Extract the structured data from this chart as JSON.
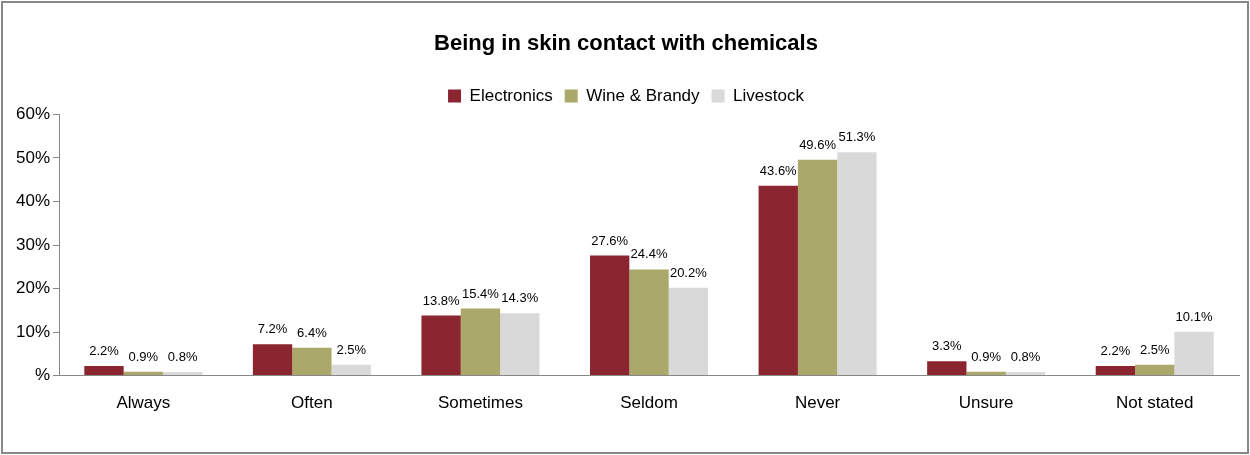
{
  "chart_data": {
    "type": "bar",
    "title": "Being in skin contact with chemicals",
    "categories": [
      "Always",
      "Often",
      "Sometimes",
      "Seldom",
      "Never",
      "Unsure",
      "Not stated"
    ],
    "series": [
      {
        "name": "Electronics",
        "color": "#8b2530",
        "values": [
          2.2,
          7.2,
          13.8,
          27.6,
          43.6,
          3.3,
          2.2
        ],
        "value_labels": [
          "2.2%",
          "7.2%",
          "13.8%",
          "27.6%",
          "43.6%",
          "3.3%",
          "2.2%"
        ]
      },
      {
        "name": "Wine & Brandy",
        "color": "#aaa86a",
        "values": [
          0.9,
          6.4,
          15.4,
          24.4,
          49.6,
          0.9,
          2.5
        ],
        "value_labels": [
          "0.9%",
          "6.4%",
          "15.4%",
          "24.4%",
          "49.6%",
          "0.9%",
          "2.5%"
        ]
      },
      {
        "name": "Livestock",
        "color": "#d9d9d9",
        "values": [
          0.8,
          2.5,
          14.3,
          20.2,
          51.3,
          0.8,
          10.1
        ],
        "value_labels": [
          "0.8%",
          "2.5%",
          "14.3%",
          "20.2%",
          "51.3%",
          "0.8%",
          "10.1%"
        ]
      }
    ],
    "ylim": [
      0,
      60
    ],
    "yticks": [
      {
        "value": 0,
        "label": "%"
      },
      {
        "value": 10,
        "label": "10%"
      },
      {
        "value": 20,
        "label": "20%"
      },
      {
        "value": 30,
        "label": "30%"
      },
      {
        "value": 40,
        "label": "40%"
      },
      {
        "value": 50,
        "label": "50%"
      },
      {
        "value": 60,
        "label": "60%"
      }
    ],
    "grid": false,
    "legend": "top"
  }
}
